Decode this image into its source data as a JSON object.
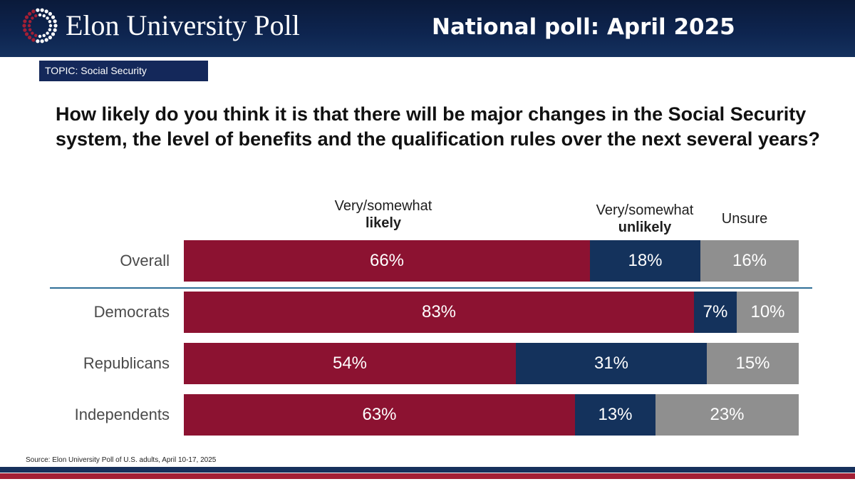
{
  "header": {
    "brand": "Elon University Poll",
    "headline": "National poll: April 2025"
  },
  "topic": "TOPIC: Social Security",
  "question": "How likely do you think it is that there will be major changes in the Social Security system, the level of benefits and the qualification rules over the next several years?",
  "source": "Source: Elon University Poll of U.S. adults, April 10-17, 2025",
  "colors": {
    "likely": "#8c1231",
    "unlikely": "#14325c",
    "unsure": "#8f8f8f",
    "header": "#0e2550",
    "accent_red": "#a31f35"
  },
  "chart_data": {
    "type": "bar",
    "orientation": "horizontal",
    "stacked": true,
    "scale": "percent",
    "xlim": [
      0,
      100
    ],
    "legend_headers": {
      "likely": {
        "line1": "Very/somewhat",
        "line2": "likely"
      },
      "unlikely": {
        "line1": "Very/somewhat",
        "line2": "unlikely"
      },
      "unsure": {
        "line1": "Unsure"
      }
    },
    "categories": [
      "Overall",
      "Democrats",
      "Republicans",
      "Independents"
    ],
    "series": [
      {
        "key": "likely",
        "values": [
          66,
          83,
          54,
          63
        ],
        "labels": [
          "66%",
          "83%",
          "54%",
          "63%"
        ]
      },
      {
        "key": "unlikely",
        "values": [
          18,
          7,
          31,
          13
        ],
        "labels": [
          "18%",
          "7%",
          "31%",
          "13%"
        ]
      },
      {
        "key": "unsure",
        "values": [
          16,
          10,
          15,
          23
        ],
        "labels": [
          "16%",
          "10%",
          "15%",
          "23%"
        ]
      }
    ]
  }
}
